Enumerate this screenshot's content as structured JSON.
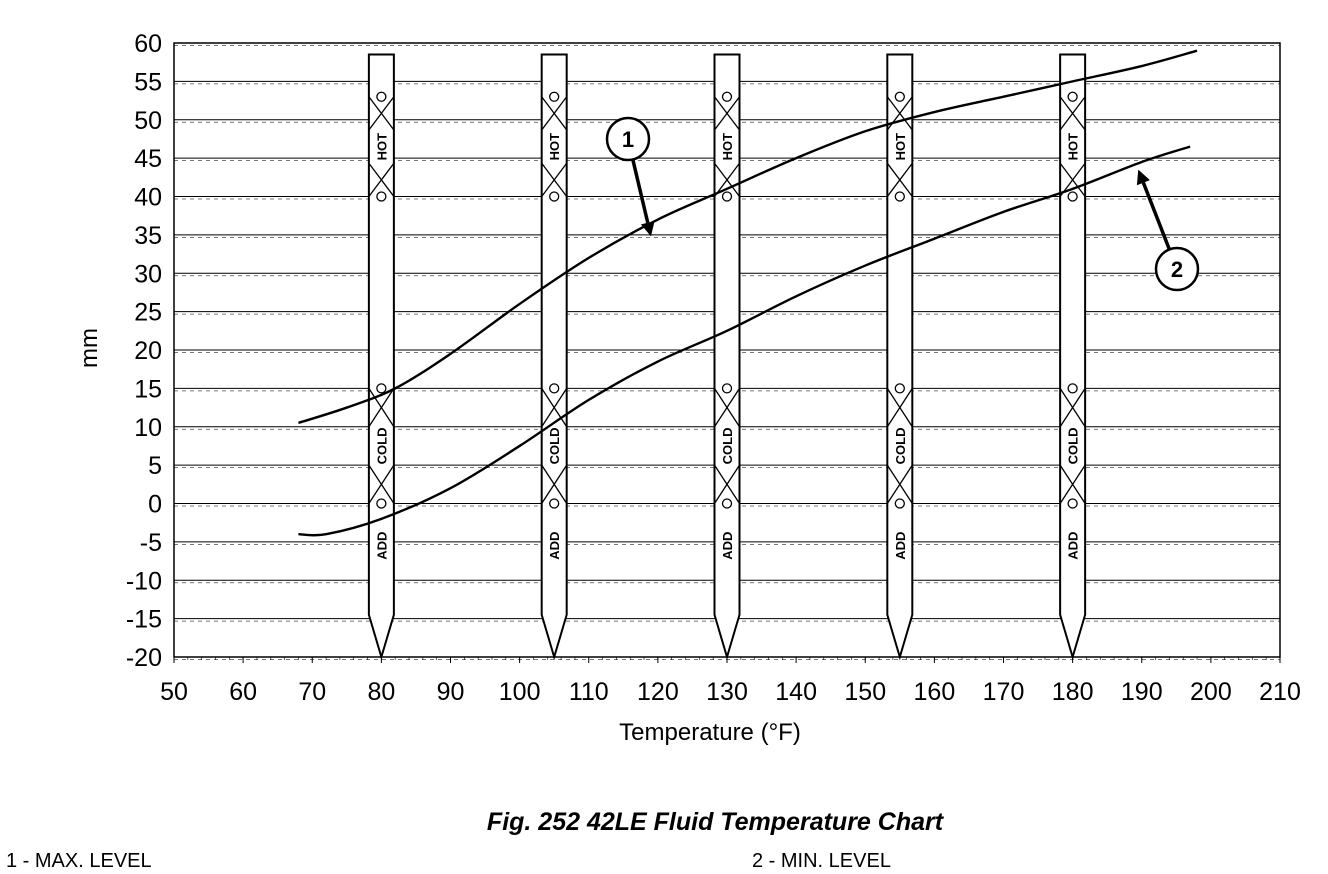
{
  "chart_data": {
    "type": "line",
    "title": "Fig. 252 42LE Fluid Temperature Chart",
    "xlabel": "Temperature (°F)",
    "ylabel": "mm",
    "xlim": [
      50,
      210
    ],
    "ylim": [
      -20,
      60
    ],
    "xticks": [
      50,
      60,
      70,
      80,
      90,
      100,
      110,
      120,
      130,
      140,
      150,
      160,
      170,
      180,
      190,
      200,
      210
    ],
    "yticks": [
      60,
      55,
      50,
      45,
      40,
      35,
      30,
      25,
      20,
      15,
      10,
      5,
      0,
      -5,
      -10,
      -15,
      -20
    ],
    "grid": true,
    "series": [
      {
        "name": "1 - MAX. LEVEL",
        "callout": "1",
        "x": [
          68,
          75,
          82,
          90,
          100,
          110,
          120,
          130,
          140,
          150,
          160,
          170,
          180,
          190,
          198
        ],
        "y": [
          10.5,
          12.5,
          15,
          19.5,
          26,
          32,
          37,
          41,
          45,
          48.5,
          51,
          53,
          55,
          57,
          59
        ]
      },
      {
        "name": "2 - MIN. LEVEL",
        "callout": "2",
        "x": [
          68,
          72,
          80,
          90,
          100,
          110,
          120,
          130,
          140,
          150,
          160,
          170,
          180,
          190,
          197
        ],
        "y": [
          -4,
          -4,
          -2,
          2,
          7.5,
          13.5,
          18.5,
          22.5,
          27,
          31,
          34.5,
          38,
          41,
          44.5,
          46.5
        ]
      }
    ],
    "dipsticks": {
      "x_positions": [
        80,
        105,
        130,
        155,
        180
      ],
      "labels": {
        "hot": "HOT",
        "cold": "COLD",
        "add": "ADD"
      },
      "hot_range": [
        40,
        53
      ],
      "cold_range": [
        0,
        15
      ]
    }
  },
  "caption": "Fig. 252 42LE Fluid Temperature Chart",
  "legend": [
    {
      "label": "1 - MAX. LEVEL"
    },
    {
      "label": "2 - MIN. LEVEL"
    }
  ]
}
